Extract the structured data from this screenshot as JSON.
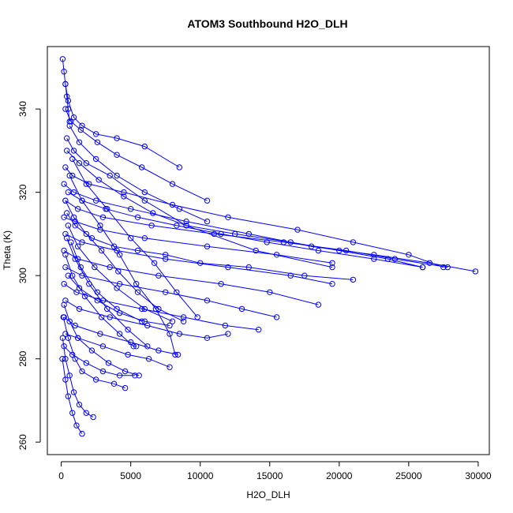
{
  "chart_data": {
    "type": "scatter",
    "title": "ATOM3 Southbound H2O_DLH",
    "xlabel": "H2O_DLH",
    "ylabel": "Theta (K)",
    "xlim": [
      -1000,
      30800
    ],
    "ylim": [
      257,
      355
    ],
    "xticks": [
      0,
      5000,
      10000,
      15000,
      20000,
      25000,
      30000
    ],
    "xtick_labels": [
      "0",
      "5000",
      "10000",
      "15000",
      "20000",
      "25000",
      "30000"
    ],
    "yticks": [
      260,
      280,
      300,
      320,
      340
    ],
    "ytick_labels": [
      "260",
      "280",
      "300",
      "320",
      "340"
    ],
    "grid": false,
    "legend": "none",
    "color": "#0000ff",
    "marker": "open-circle",
    "lines_connected": true,
    "series": [
      {
        "x": [
          300,
          500,
          900,
          1500,
          2500,
          4000,
          6000,
          8500
        ],
        "y": [
          346,
          342,
          338,
          336,
          334,
          333,
          331,
          326
        ]
      },
      {
        "x": [
          400,
          900,
          1800,
          3500,
          6000,
          9000,
          14000,
          19500
        ],
        "y": [
          333,
          330,
          327,
          324,
          318,
          312,
          306,
          302
        ]
      },
      {
        "x": [
          300,
          800,
          2000,
          4500,
          8000,
          12000,
          17000,
          21000,
          25000,
          27500
        ],
        "y": [
          326,
          324,
          322,
          320,
          317,
          314,
          311,
          308,
          305,
          302
        ]
      },
      {
        "x": [
          200,
          900,
          2500,
          5000,
          9000,
          13500,
          18000,
          22500,
          26500,
          29800
        ],
        "y": [
          322,
          320,
          318,
          316,
          313,
          310,
          307,
          305,
          303,
          301
        ]
      },
      {
        "x": [
          300,
          1200,
          3000,
          6500,
          11000,
          16000,
          20500,
          24000,
          27800
        ],
        "y": [
          318,
          316,
          314,
          312,
          310,
          308,
          306,
          304,
          302
        ]
      },
      {
        "x": [
          200,
          1000,
          2800,
          6000,
          10500,
          15500,
          19500
        ],
        "y": [
          314,
          313,
          311,
          309,
          307,
          305,
          303
        ]
      },
      {
        "x": [
          300,
          1500,
          4000,
          7500,
          12000,
          16500,
          19500
        ],
        "y": [
          310,
          308,
          306,
          304,
          302,
          300,
          298
        ]
      },
      {
        "x": [
          200,
          1200,
          3500,
          7000,
          11500,
          15000,
          18500
        ],
        "y": [
          306,
          304,
          302,
          300,
          298,
          296,
          293
        ]
      },
      {
        "x": [
          300,
          1500,
          4200,
          7500,
          10500,
          13000,
          15500
        ],
        "y": [
          302,
          300,
          298,
          296,
          294,
          292,
          290
        ]
      },
      {
        "x": [
          200,
          1100,
          3000,
          5800,
          8800,
          11800,
          14200
        ],
        "y": [
          298,
          296,
          294,
          292,
          290,
          288,
          287
        ]
      },
      {
        "x": [
          300,
          1300,
          3500,
          6200,
          8500,
          10500,
          12000
        ],
        "y": [
          294,
          292,
          290,
          288,
          286,
          285,
          286
        ]
      },
      {
        "x": [
          200,
          1000,
          2800,
          5000,
          7000,
          8400
        ],
        "y": [
          290,
          288,
          286,
          284,
          282,
          281
        ]
      },
      {
        "x": [
          300,
          1200,
          3000,
          4800,
          6300,
          7800
        ],
        "y": [
          286,
          285,
          283,
          281,
          280,
          278
        ]
      },
      {
        "x": [
          200,
          800,
          1800,
          3000,
          4200,
          5300
        ],
        "y": [
          283,
          281,
          279,
          277,
          276,
          276
        ]
      },
      {
        "x": [
          150,
          500,
          1000,
          1500,
          2500,
          3800,
          4600
        ],
        "y": [
          290,
          285,
          280,
          277,
          275,
          274,
          273
        ]
      },
      {
        "x": [
          100,
          300,
          600,
          900,
          1300,
          1800,
          2300
        ],
        "y": [
          285,
          280,
          276,
          272,
          269,
          267,
          266
        ]
      },
      {
        "x": [
          80,
          300,
          500,
          800,
          1100,
          1500
        ],
        "y": [
          280,
          275,
          271,
          267,
          264,
          262
        ]
      },
      {
        "x": [
          400,
          1300,
          2700,
          4500,
          6600,
          9000,
          12500,
          16500,
          20000,
          23500,
          26000
        ],
        "y": [
          330,
          327,
          323,
          319,
          315,
          312,
          310,
          308,
          306,
          304,
          302
        ]
      },
      {
        "x": [
          500,
          1500,
          3200,
          5500,
          8300,
          11500,
          14800,
          18500,
          22500,
          26000
        ],
        "y": [
          320,
          318,
          316,
          314,
          312,
          310,
          308,
          306,
          304,
          302
        ]
      },
      {
        "x": [
          400,
          1000,
          2200,
          3800,
          5500,
          7500,
          10000,
          13500,
          17500,
          21000
        ],
        "y": [
          315,
          312,
          309,
          307,
          306,
          305,
          303,
          302,
          300,
          299
        ]
      },
      {
        "x": [
          300,
          700,
          1400,
          2600,
          4000,
          5800,
          8000,
          10500
        ],
        "y": [
          340,
          337,
          335,
          332,
          329,
          326,
          322,
          318
        ]
      },
      {
        "x": [
          600,
          1300,
          2500,
          4000,
          6000,
          8500,
          10500
        ],
        "y": [
          336,
          332,
          328,
          324,
          320,
          316,
          313
        ]
      },
      {
        "x": [
          500,
          1200,
          2400,
          4000,
          6000,
          8000
        ],
        "y": [
          312,
          307,
          302,
          297,
          292,
          289
        ]
      },
      {
        "x": [
          400,
          1000,
          2000,
          3300,
          4800,
          6200
        ],
        "y": [
          309,
          304,
          298,
          292,
          287,
          283
        ]
      },
      {
        "x": [
          300,
          800,
          1700,
          2900,
          4200,
          5200,
          5400
        ],
        "y": [
          305,
          300,
          295,
          290,
          286,
          283,
          283
        ]
      },
      {
        "x": [
          600,
          1500,
          2800,
          4200,
          5400,
          6800,
          7800,
          8200
        ],
        "y": [
          324,
          318,
          312,
          305,
          298,
          292,
          286,
          281
        ]
      },
      {
        "x": [
          800,
          1800,
          3300,
          5000,
          6700,
          8300,
          9800
        ],
        "y": [
          328,
          322,
          316,
          309,
          303,
          296,
          290
        ]
      },
      {
        "x": [
          500,
          1300,
          2600,
          4200,
          6000,
          7800
        ],
        "y": [
          300,
          297,
          294,
          291,
          289,
          288
        ]
      },
      {
        "x": [
          100,
          200,
          300,
          400,
          500,
          600
        ],
        "y": [
          352,
          349,
          346,
          343,
          340,
          337
        ]
      },
      {
        "x": [
          700,
          1400,
          2600,
          4000,
          5800
        ],
        "y": [
          308,
          302,
          296,
          292,
          289
        ]
      },
      {
        "x": [
          200,
          600,
          1200,
          2200,
          3400,
          4600,
          5600
        ],
        "y": [
          293,
          289,
          285,
          282,
          279,
          277,
          276
        ]
      },
      {
        "x": [
          300,
          900,
          1800,
          2900,
          4100,
          5500,
          7000,
          8800
        ],
        "y": [
          318,
          314,
          310,
          306,
          301,
          296,
          292,
          289
        ]
      }
    ]
  }
}
